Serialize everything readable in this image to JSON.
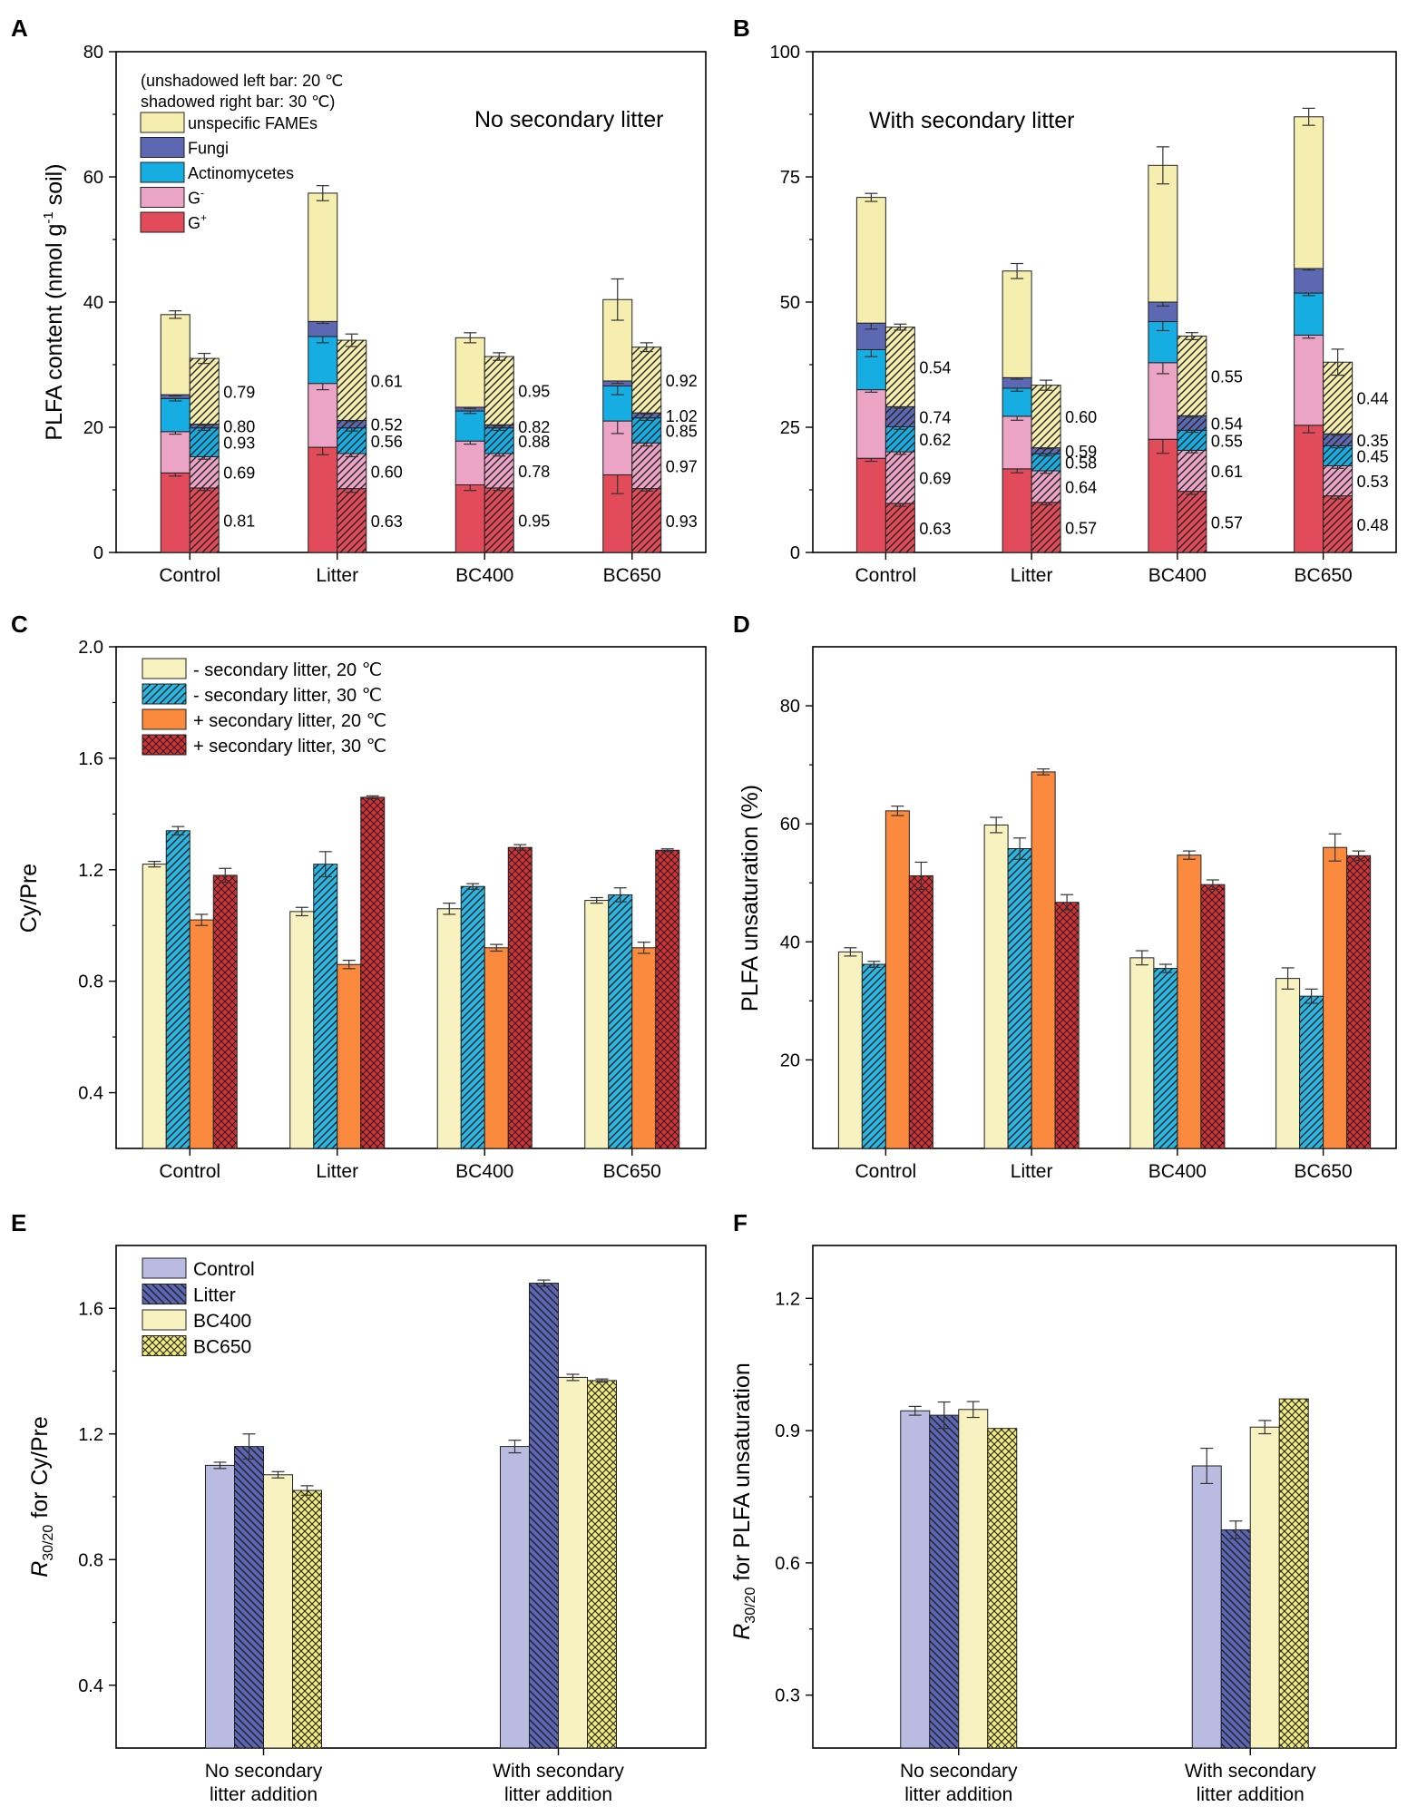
{
  "figure": {
    "panel_letters": [
      "A",
      "B",
      "C",
      "D",
      "E",
      "F"
    ]
  },
  "colors": {
    "unspecific": "#f5eeae",
    "fungi": "#5d68b2",
    "actino": "#16aee2",
    "gneg": "#eba4c6",
    "gpos": "#e14b5a",
    "c_yellow": "#f7f2c0",
    "c_cyan": "#2ab7e3",
    "c_orange": "#fb8a3f",
    "c_red": "#d72f35",
    "e_control": "#b9bbe1",
    "e_litter": "#5b65b3",
    "e_bc400": "#f7f2c0",
    "e_bc650": "#f2ec7a"
  },
  "chart_data": [
    {
      "id": "A",
      "type": "bar",
      "stacked": true,
      "title": "No secondary litter",
      "ylabel": "PLFA content (nmol g-1 soil)",
      "ylabel_parts": [
        "PLFA content (nmol g",
        "-1",
        " soil)"
      ],
      "ylim": [
        0,
        80
      ],
      "yticks": [
        0,
        20,
        40,
        60,
        80
      ],
      "categories": [
        "Control",
        "Litter",
        "BC400",
        "BC650"
      ],
      "note_lines": [
        "(unshadowed left bar: 20 ℃",
        " shadowed right bar: 30 ℃)"
      ],
      "legend": [
        {
          "label": "unspecific FAMEs",
          "color_key": "unspecific"
        },
        {
          "label": "Fungi",
          "color_key": "fungi"
        },
        {
          "label": "Actinomycetes",
          "color_key": "actino"
        },
        {
          "label": "G",
          "sup": "-",
          "color_key": "gneg"
        },
        {
          "label": "G",
          "sup": "+",
          "color_key": "gpos"
        }
      ],
      "series_names": [
        "G+",
        "G-",
        "Actinomycetes",
        "Fungi",
        "unspecific FAMEs"
      ],
      "series_colors": [
        "gpos",
        "gneg",
        "actino",
        "fungi",
        "unspecific"
      ],
      "bars_20C": [
        {
          "values": [
            12.7,
            6.6,
            5.3,
            0.6,
            12.8
          ],
          "total_err": 0.6,
          "seg_err": [
            0.5,
            0.4,
            0.4,
            0.2,
            0.6
          ]
        },
        {
          "values": [
            16.8,
            10.2,
            7.5,
            2.4,
            20.5
          ],
          "total_err": 1.2,
          "seg_err": [
            1.2,
            1.0,
            1.0,
            0.3,
            1.2
          ]
        },
        {
          "values": [
            10.8,
            7.0,
            4.8,
            0.6,
            11.1
          ],
          "total_err": 0.8,
          "seg_err": [
            0.9,
            0.5,
            0.4,
            0.2,
            0.8
          ]
        },
        {
          "values": [
            12.4,
            8.6,
            5.6,
            0.8,
            13.0
          ],
          "total_err": 3.3,
          "seg_err": [
            3.0,
            2.0,
            1.4,
            0.4,
            3.3
          ]
        }
      ],
      "bars_30C": [
        {
          "values": [
            10.3,
            5.0,
            4.6,
            0.6,
            10.5
          ],
          "total_err": 0.8,
          "seg_err": [
            0.4,
            0.4,
            0.4,
            0.2,
            0.8
          ]
        },
        {
          "values": [
            10.2,
            5.6,
            4.1,
            1.2,
            12.8
          ],
          "total_err": 1.0,
          "seg_err": [
            0.6,
            0.5,
            0.5,
            0.2,
            1.0
          ]
        },
        {
          "values": [
            10.3,
            5.5,
            4.1,
            0.5,
            10.9
          ],
          "total_err": 0.6,
          "seg_err": [
            0.4,
            0.4,
            0.4,
            0.2,
            0.6
          ]
        },
        {
          "values": [
            10.2,
            7.3,
            4.0,
            0.8,
            10.5
          ],
          "total_err": 0.7,
          "seg_err": [
            0.4,
            0.5,
            0.4,
            0.2,
            0.7
          ]
        }
      ],
      "ratio_labels": [
        [
          "0.81",
          "0.69",
          "0.93",
          "0.80",
          "0.79"
        ],
        [
          "0.63",
          "0.60",
          "0.56",
          "0.52",
          "0.61"
        ],
        [
          "0.95",
          "0.78",
          "0.88",
          "0.82",
          "0.95"
        ],
        [
          "0.93",
          "0.97",
          "0.85",
          "1.02",
          "0.92"
        ]
      ]
    },
    {
      "id": "B",
      "type": "bar",
      "stacked": true,
      "title": "With secondary litter",
      "ylim": [
        0,
        100
      ],
      "yticks": [
        0,
        25,
        50,
        75,
        100
      ],
      "categories": [
        "Control",
        "Litter",
        "BC400",
        "BC650"
      ],
      "series_names": [
        "G+",
        "G-",
        "Actinomycetes",
        "Fungi",
        "unspecific FAMEs"
      ],
      "series_colors": [
        "gpos",
        "gneg",
        "actino",
        "fungi",
        "unspecific"
      ],
      "bars_20C": [
        {
          "values": [
            18.8,
            13.7,
            8.0,
            5.3,
            25.1
          ],
          "total_err": 0.8,
          "seg_err": [
            0.6,
            0.5,
            1.4,
            1.2,
            0.8
          ]
        },
        {
          "values": [
            16.7,
            10.5,
            5.6,
            2.1,
            21.3
          ],
          "total_err": 1.5,
          "seg_err": [
            0.8,
            0.8,
            0.6,
            0.3,
            1.5
          ]
        },
        {
          "values": [
            22.6,
            15.3,
            8.2,
            3.9,
            27.3
          ],
          "total_err": 3.7,
          "seg_err": [
            2.8,
            2.2,
            1.8,
            0.8,
            3.7
          ]
        },
        {
          "values": [
            25.4,
            18.0,
            8.4,
            4.9,
            30.3
          ],
          "total_err": 1.7,
          "seg_err": [
            1.5,
            0.6,
            0.5,
            0.3,
            1.7
          ]
        }
      ],
      "bars_30C": [
        {
          "values": [
            9.8,
            10.3,
            5.0,
            4.0,
            15.9
          ],
          "total_err": 0.6,
          "seg_err": [
            0.6,
            0.5,
            0.5,
            0.3,
            0.6
          ]
        },
        {
          "values": [
            10.0,
            6.3,
            3.4,
            1.2,
            12.5
          ],
          "total_err": 1.0,
          "seg_err": [
            0.5,
            0.5,
            0.4,
            0.2,
            1.0
          ]
        },
        {
          "values": [
            12.2,
            8.2,
            4.0,
            2.9,
            15.9
          ],
          "total_err": 0.7,
          "seg_err": [
            0.6,
            0.5,
            0.4,
            0.3,
            0.7
          ]
        },
        {
          "values": [
            11.3,
            6.0,
            4.0,
            2.4,
            14.3
          ],
          "total_err": 2.6,
          "seg_err": [
            0.6,
            0.5,
            0.4,
            0.3,
            2.6
          ]
        }
      ],
      "ratio_labels": [
        [
          "0.63",
          "0.69",
          "0.62",
          "0.74",
          "0.54"
        ],
        [
          "0.57",
          "0.64",
          "0.58",
          "0.59",
          "0.60"
        ],
        [
          "0.57",
          "0.61",
          "0.55",
          "0.54",
          "0.55"
        ],
        [
          "0.48",
          "0.53",
          "0.45",
          "0.35",
          "0.44"
        ]
      ]
    },
    {
      "id": "C",
      "type": "bar",
      "ylabel": "Cy/Pre",
      "ylim": [
        0.2,
        2.0
      ],
      "yticks": [
        0.4,
        0.8,
        1.2,
        1.6,
        2.0
      ],
      "ytick_labels": [
        "0.4",
        "0.8",
        "1.2",
        "1.6",
        "2.0"
      ],
      "categories": [
        "Control",
        "Litter",
        "BC400",
        "BC650"
      ],
      "series": [
        {
          "name": "- secondary litter, 20 ℃",
          "color_key": "c_yellow",
          "pattern": "none",
          "values": [
            1.22,
            1.05,
            1.06,
            1.09
          ],
          "errors": [
            0.01,
            0.015,
            0.02,
            0.01
          ]
        },
        {
          "name": "- secondary litter, 30 ℃",
          "color_key": "c_cyan",
          "pattern": "hatch",
          "values": [
            1.34,
            1.22,
            1.14,
            1.11
          ],
          "errors": [
            0.015,
            0.045,
            0.01,
            0.025
          ]
        },
        {
          "name": "+ secondary litter, 20 ℃",
          "color_key": "c_orange",
          "pattern": "none",
          "values": [
            1.02,
            0.86,
            0.92,
            0.92
          ],
          "errors": [
            0.02,
            0.015,
            0.012,
            0.02
          ]
        },
        {
          "name": "+ secondary litter, 30 ℃",
          "color_key": "c_red",
          "pattern": "cross",
          "values": [
            1.18,
            1.46,
            1.28,
            1.27
          ],
          "errors": [
            0.025,
            0.005,
            0.01,
            0.005
          ]
        }
      ]
    },
    {
      "id": "D",
      "type": "bar",
      "ylabel": "PLFA unsaturation (%)",
      "ylim": [
        5,
        90
      ],
      "yticks": [
        20,
        40,
        60,
        80
      ],
      "categories": [
        "Control",
        "Litter",
        "BC400",
        "BC650"
      ],
      "series": [
        {
          "name": "- secondary litter, 20 ℃",
          "color_key": "c_yellow",
          "pattern": "none",
          "values": [
            38.3,
            59.8,
            37.3,
            33.8
          ],
          "errors": [
            0.7,
            1.3,
            1.2,
            1.8
          ]
        },
        {
          "name": "- secondary litter, 30 ℃",
          "color_key": "c_cyan",
          "pattern": "hatch",
          "values": [
            36.2,
            55.8,
            35.5,
            30.8
          ],
          "errors": [
            0.5,
            1.8,
            0.7,
            1.2
          ]
        },
        {
          "name": "+ secondary litter, 20 ℃",
          "color_key": "c_orange",
          "pattern": "none",
          "values": [
            62.2,
            68.8,
            54.7,
            56.0
          ],
          "errors": [
            0.8,
            0.5,
            0.7,
            2.3
          ]
        },
        {
          "name": "+ secondary litter, 30 ℃",
          "color_key": "c_red",
          "pattern": "cross",
          "values": [
            51.2,
            46.7,
            49.7,
            54.6
          ],
          "errors": [
            2.3,
            1.3,
            0.8,
            0.8
          ]
        }
      ]
    },
    {
      "id": "E",
      "type": "bar",
      "ylabel": "R30/20 for Cy/Pre",
      "ylabel_parts": [
        "R",
        "30/20",
        " for Cy/Pre"
      ],
      "ylim": [
        0.2,
        1.8
      ],
      "yticks": [
        0.4,
        0.8,
        1.2,
        1.6
      ],
      "ytick_labels": [
        "0.4",
        "0.8",
        "1.2",
        "1.6"
      ],
      "categories": [
        "No secondary litter addition",
        "With secondary litter addition"
      ],
      "category_lines": [
        [
          "No secondary",
          "litter addition"
        ],
        [
          "With secondary",
          "litter addition"
        ]
      ],
      "series": [
        {
          "name": "Control",
          "color_key": "e_control",
          "pattern": "none",
          "values": [
            1.1,
            1.16
          ],
          "errors": [
            0.01,
            0.02
          ]
        },
        {
          "name": "Litter",
          "color_key": "e_litter",
          "pattern": "hatch-back",
          "values": [
            1.16,
            1.68
          ],
          "errors": [
            0.04,
            0.01
          ]
        },
        {
          "name": "BC400",
          "color_key": "e_bc400",
          "pattern": "none",
          "values": [
            1.07,
            1.38
          ],
          "errors": [
            0.01,
            0.01
          ]
        },
        {
          "name": "BC650",
          "color_key": "e_bc650",
          "pattern": "cross",
          "values": [
            1.02,
            1.37
          ],
          "errors": [
            0.015,
            0.005
          ]
        }
      ]
    },
    {
      "id": "F",
      "type": "bar",
      "ylabel": "R30/20 for PLFA unsaturation",
      "ylabel_parts": [
        "R",
        "30/20",
        " for PLFA unsaturation"
      ],
      "ylim": [
        0.18,
        1.32
      ],
      "yticks": [
        0.3,
        0.6,
        0.9,
        1.2
      ],
      "ytick_labels": [
        "0.3",
        "0.6",
        "0.9",
        "1.2"
      ],
      "categories": [
        "No secondary litter addition",
        "With secondary litter addition"
      ],
      "category_lines": [
        [
          "No secondary",
          "litter addition"
        ],
        [
          "With secondary",
          "litter addition"
        ]
      ],
      "series": [
        {
          "name": "Control",
          "color_key": "e_control",
          "pattern": "none",
          "values": [
            0.945,
            0.82
          ],
          "errors": [
            0.01,
            0.04
          ]
        },
        {
          "name": "Litter",
          "color_key": "e_litter",
          "pattern": "hatch-back",
          "values": [
            0.935,
            0.675
          ],
          "errors": [
            0.03,
            0.02
          ]
        },
        {
          "name": "BC400",
          "color_key": "e_bc400",
          "pattern": "none",
          "values": [
            0.948,
            0.908
          ],
          "errors": [
            0.018,
            0.015
          ]
        },
        {
          "name": "BC650",
          "color_key": "e_bc650",
          "pattern": "cross",
          "values": [
            0.905,
            0.972
          ],
          "errors": [
            0.0,
            0.0
          ]
        }
      ]
    }
  ]
}
